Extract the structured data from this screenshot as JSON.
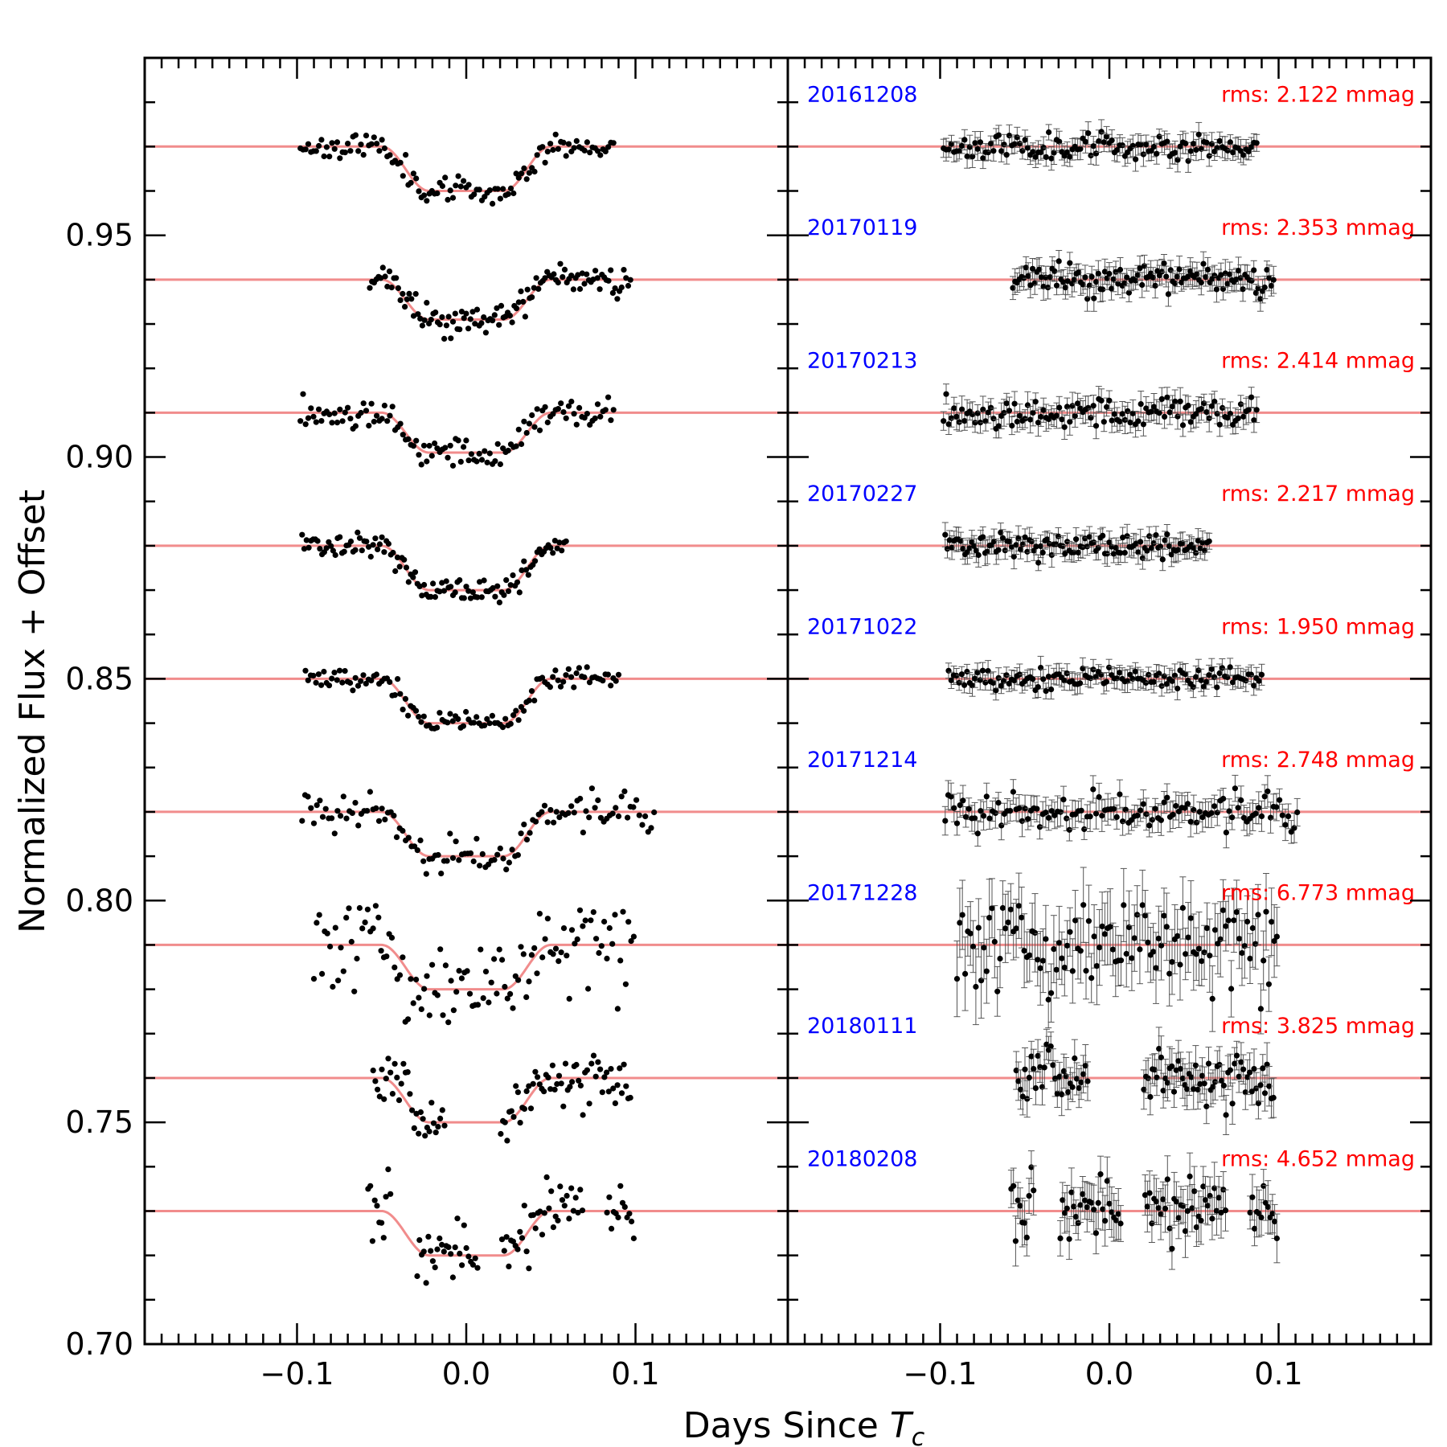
{
  "chart_data": {
    "type": "scatter",
    "title": "",
    "xlabel_main": "Days Since ",
    "xlabel_sub": "c",
    "xlabel_italic": "T",
    "ylabel": "Normalized Flux + Offset",
    "xlim": [
      -0.19,
      0.19
    ],
    "ylim": [
      0.7,
      0.99
    ],
    "x_ticks": [
      -0.1,
      0.0,
      0.1
    ],
    "x_tick_labels": [
      "−0.1",
      "0.0",
      "0.1"
    ],
    "y_ticks": [
      0.7,
      0.75,
      0.8,
      0.85,
      0.9,
      0.95
    ],
    "y_tick_labels": [
      "0.70",
      "0.75",
      "0.80",
      "0.85",
      "0.90",
      "0.95"
    ],
    "panels": [
      "left: transit light curves with model",
      "right: residuals with error bars"
    ],
    "transit_model": {
      "total_duration_days": 0.1,
      "ingress_days": 0.028
    },
    "colors": {
      "model": "#f08080",
      "points": "#000000",
      "date_label": "#0000ff",
      "rms_label": "#ff0000"
    },
    "series": [
      {
        "name": "20161208",
        "date": "20161208",
        "rms": "rms: 2.122 mmag",
        "baseline": 0.97,
        "depth": 0.01,
        "x_range": [
          -0.098,
          0.087
        ],
        "noise": 0.0014,
        "err": 0.0021,
        "seed": 11
      },
      {
        "name": "20170119",
        "date": "20170119",
        "rms": "rms: 2.353 mmag",
        "baseline": 0.94,
        "depth": 0.009,
        "x_range": [
          -0.057,
          0.097
        ],
        "noise": 0.0017,
        "err": 0.0024,
        "seed": 23
      },
      {
        "name": "20170213",
        "date": "20170213",
        "rms": "rms: 2.414 mmag",
        "baseline": 0.91,
        "depth": 0.009,
        "x_range": [
          -0.098,
          0.087
        ],
        "noise": 0.0017,
        "err": 0.0024,
        "seed": 37
      },
      {
        "name": "20170227",
        "date": "20170227",
        "rms": "rms: 2.217 mmag",
        "baseline": 0.88,
        "depth": 0.01,
        "x_range": [
          -0.097,
          0.059
        ],
        "noise": 0.0015,
        "err": 0.0022,
        "seed": 41
      },
      {
        "name": "20171022",
        "date": "20171022",
        "rms": "rms: 1.950 mmag",
        "baseline": 0.85,
        "depth": 0.01,
        "x_range": [
          -0.095,
          0.09
        ],
        "noise": 0.0013,
        "err": 0.002,
        "seed": 53
      },
      {
        "name": "20171214",
        "date": "20171214",
        "rms": "rms: 2.748 mmag",
        "baseline": 0.82,
        "depth": 0.01,
        "x_range": [
          -0.097,
          0.111
        ],
        "noise": 0.002,
        "err": 0.0028,
        "seed": 67
      },
      {
        "name": "20171228",
        "date": "20171228",
        "rms": "rms: 6.773 mmag",
        "baseline": 0.79,
        "depth": 0.01,
        "x_range": [
          -0.09,
          0.099
        ],
        "noise": 0.005,
        "err": 0.0068,
        "seed": 79
      },
      {
        "name": "20180111",
        "date": "20180111",
        "rms": "rms: 3.825 mmag",
        "baseline": 0.76,
        "depth": 0.01,
        "x_range": [
          -0.055,
          0.097
        ],
        "noise": 0.003,
        "err": 0.0038,
        "seed": 83,
        "gaps": [
          [
            -0.012,
            0.02
          ]
        ]
      },
      {
        "name": "20180208",
        "date": "20180208",
        "rms": "rms: 4.652 mmag",
        "baseline": 0.73,
        "depth": 0.01,
        "x_range": [
          -0.058,
          0.099
        ],
        "noise": 0.0035,
        "err": 0.0046,
        "seed": 97,
        "gaps": [
          [
            -0.044,
            -0.03
          ],
          [
            0.007,
            0.021
          ],
          [
            0.069,
            0.083
          ]
        ]
      }
    ]
  }
}
